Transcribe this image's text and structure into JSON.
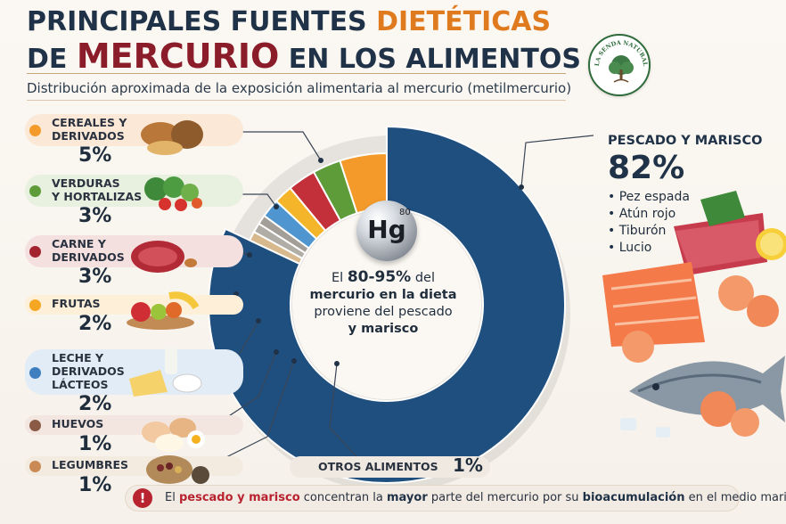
{
  "title": {
    "line1_a": "PRINCIPALES FUENTES ",
    "line1_b": "DIETÉTICAS",
    "line2_a": "DE ",
    "line2_b": "MERCURIO",
    "line2_c": " EN LOS ALIMENTOS"
  },
  "subtitle": "Distribución aproximada de la exposición alimentaria al mercurio (metilmercurio)",
  "logo": {
    "text_top": "LA SENDA NATURAL",
    "icon": "tree-icon"
  },
  "center": {
    "symbol": "Hg",
    "superscript": "80",
    "prefix": "El ",
    "range": "80-95%",
    "mid1": " del",
    "bold_line": "mercurio en la dieta",
    "line3": "proviene del pescado",
    "line4": "y marisco"
  },
  "categories": [
    {
      "label": "CEREALES Y\nDERIVADOS",
      "pct": "5%",
      "color": "#f39a2b",
      "food_icon": "bread-icon"
    },
    {
      "label": "VERDURAS\nY HORTALIZAS",
      "pct": "3%",
      "color": "#5e9c3a",
      "food_icon": "vegetables-icon"
    },
    {
      "label": "CARNE Y\nDERIVADOS",
      "pct": "3%",
      "color": "#a3232f",
      "food_icon": "meat-icon"
    },
    {
      "label": "FRUTAS",
      "pct": "2%",
      "color": "#f5a623",
      "food_icon": "fruit-icon"
    },
    {
      "label": "LECHE Y\nDERIVADOS\nLÁCTEOS",
      "pct": "2%",
      "color": "#3f7fc0",
      "food_icon": "dairy-icon"
    },
    {
      "label": "HUEVOS",
      "pct": "1%",
      "color": "#8a5a44",
      "food_icon": "egg-icon"
    },
    {
      "label": "LEGUMBRES",
      "pct": "1%",
      "color": "#c98a55",
      "food_icon": "legumes-icon"
    }
  ],
  "fish": {
    "title": "PESCADO Y MARISCO",
    "pct": "82%",
    "items": [
      "Pez espada",
      "Atún rojo",
      "Tiburón",
      "Lucio"
    ],
    "food_icon": "seafood-icon"
  },
  "otros": {
    "label": "OTROS ALIMENTOS",
    "pct": "1%"
  },
  "note": {
    "icon": "warning-icon",
    "t1": "El ",
    "t2": "pescado y marisco",
    "t3": " concentran la ",
    "t4": "mayor",
    "t5": " parte del mercurio por su ",
    "t6": "bioacumulación",
    "t7": " en el medio marino"
  },
  "chart_data": {
    "type": "pie",
    "variant": "donut",
    "title": "PRINCIPALES FUENTES DIETÉTICAS DE MERCURIO EN LOS ALIMENTOS",
    "subtitle": "Distribución aproximada de la exposición alimentaria al mercurio (metilmercurio)",
    "slices": [
      {
        "name": "PESCADO Y MARISCO",
        "value": 82,
        "color": "#1f4f7f"
      },
      {
        "name": "OTROS ALIMENTOS",
        "value": 1,
        "color": "#d8b98e"
      },
      {
        "name": "LEGUMBRES",
        "value": 1,
        "color": "#b0aca6"
      },
      {
        "name": "HUEVOS",
        "value": 1,
        "color": "#a39e97"
      },
      {
        "name": "LECHE Y DERIVADOS LÁCTEOS",
        "value": 2,
        "color": "#4f95d0"
      },
      {
        "name": "FRUTAS",
        "value": 2,
        "color": "#f5b52b"
      },
      {
        "name": "CARNE Y DERIVADOS",
        "value": 3,
        "color": "#c4303a"
      },
      {
        "name": "VERDURAS Y HORTALIZAS",
        "value": 3,
        "color": "#5e9c3a"
      },
      {
        "name": "CEREALES Y DERIVADOS",
        "value": 5,
        "color": "#f39a2b"
      }
    ]
  }
}
